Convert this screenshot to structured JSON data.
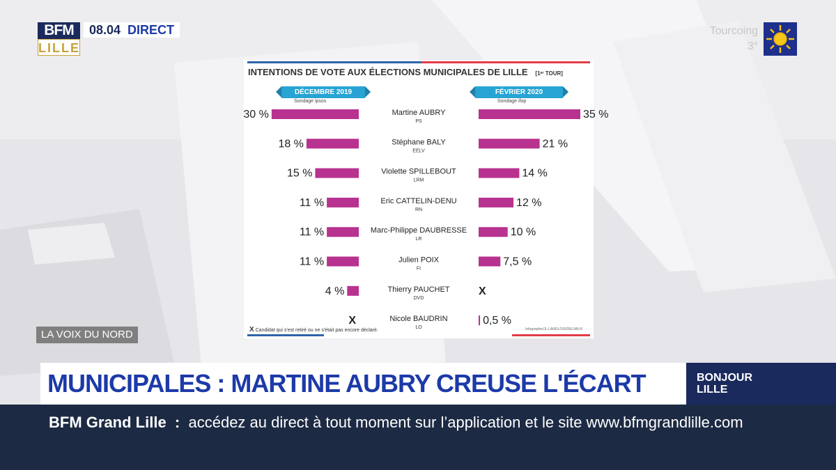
{
  "channel": {
    "logo_top": "BFM",
    "logo_bottom": "LILLE",
    "time": "08.04",
    "live": "DIRECT"
  },
  "weather": {
    "city": "Tourcoing",
    "temp": "3°",
    "icon": "sun-icon"
  },
  "source_tag": "LA VOIX DU NORD",
  "infographic": {
    "title": "INTENTIONS DE VOTE AUX ÉLECTIONS MUNICIPALES DE LILLE",
    "round": "[1ᵉʳ TOUR]",
    "left_header": "DÉCEMBRE 2019",
    "left_source": "Sondage ipsos",
    "right_header": "FÉVRIER 2020",
    "right_source": "Sondage ifop",
    "footnote_mark": "X",
    "footnote_text": "Candidat qui s'est retiré ou ne s'était pas encore déclaré.",
    "credit": "Infographie/JL.LANGLOIS/DELVAUX"
  },
  "chart_data": {
    "type": "bar",
    "title": "INTENTIONS DE VOTE AUX ÉLECTIONS MUNICIPALES DE LILLE",
    "categories": [
      "Martine AUBRY",
      "Stéphane BALY",
      "Violette SPILLEBOUT",
      "Eric CATTELIN-DENU",
      "Marc-Philippe DAUBRESSE",
      "Julien POIX",
      "Thierry PAUCHET",
      "Nicole BAUDRIN"
    ],
    "parties": [
      "PS",
      "EELV",
      "LRM",
      "RN",
      "LR",
      "FI",
      "DVD",
      "LO"
    ],
    "series": [
      {
        "name": "DÉCEMBRE 2019",
        "values": [
          30,
          18,
          15,
          11,
          11,
          11,
          4,
          null
        ],
        "labels": [
          "30 %",
          "18 %",
          "15 %",
          "11 %",
          "11 %",
          "11 %",
          "4 %",
          "X"
        ]
      },
      {
        "name": "FÉVRIER 2020",
        "values": [
          35,
          21,
          14,
          12,
          10,
          7.5,
          null,
          0.5
        ],
        "labels": [
          "35 %",
          "21 %",
          "14 %",
          "12 %",
          "10 %",
          "7,5 %",
          "X",
          "0,5 %"
        ]
      }
    ],
    "bar_color": "#b8328f",
    "xlim": [
      0,
      35
    ]
  },
  "headline": "MUNICIPALES : MARTINE AUBRY CREUSE L'ÉCART",
  "show": {
    "line1": "BONJOUR",
    "line2": "LILLE"
  },
  "ticker": {
    "brand": "BFM Grand Lille",
    "separator": ":",
    "text": "accédez au direct à tout moment sur l’application et le site www.bfmgrandlille.com"
  }
}
